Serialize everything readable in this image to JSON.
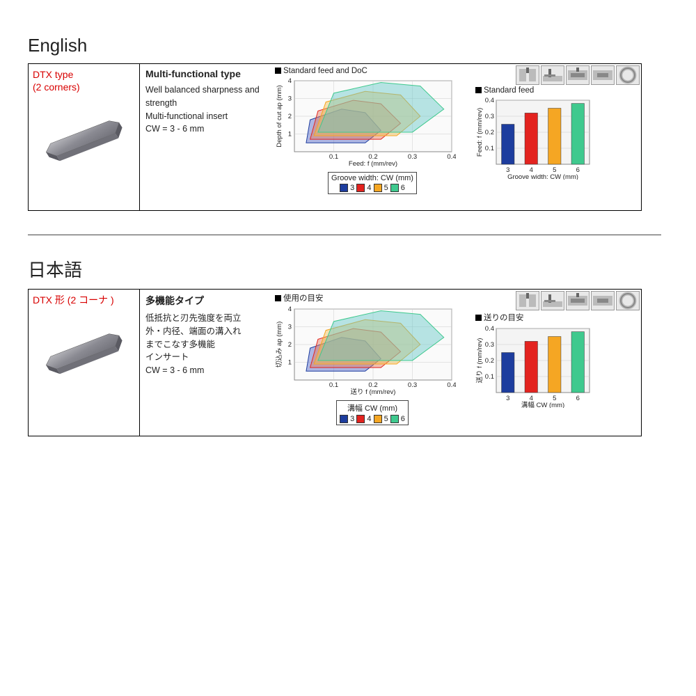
{
  "colors": {
    "cw3": "#1d3d9e",
    "cw4": "#e3231f",
    "cw5": "#f5a623",
    "cw6": "#3fc98e",
    "cw3_fill": "rgba(80,100,200,0.45)",
    "cw4_fill": "rgba(230,120,90,0.45)",
    "cw5_fill": "rgba(245,190,80,0.45)",
    "cw6_fill": "rgba(100,200,200,0.45)"
  },
  "region_chart": {
    "xlim": [
      0,
      0.4
    ],
    "ylim": [
      0,
      4
    ],
    "xticks": [
      0.1,
      0.2,
      0.3,
      0.4
    ],
    "yticks": [
      1,
      2,
      3,
      4
    ],
    "regions": {
      "cw3": [
        [
          0.03,
          0.5
        ],
        [
          0.04,
          1.8
        ],
        [
          0.12,
          2.4
        ],
        [
          0.18,
          2.2
        ],
        [
          0.22,
          1.2
        ],
        [
          0.18,
          0.5
        ]
      ],
      "cw4": [
        [
          0.04,
          0.7
        ],
        [
          0.06,
          2.3
        ],
        [
          0.15,
          2.9
        ],
        [
          0.22,
          2.7
        ],
        [
          0.27,
          1.6
        ],
        [
          0.22,
          0.7
        ]
      ],
      "cw5": [
        [
          0.05,
          0.9
        ],
        [
          0.08,
          2.8
        ],
        [
          0.18,
          3.4
        ],
        [
          0.27,
          3.2
        ],
        [
          0.32,
          2.0
        ],
        [
          0.26,
          0.9
        ]
      ],
      "cw6": [
        [
          0.06,
          1.1
        ],
        [
          0.1,
          3.3
        ],
        [
          0.22,
          3.9
        ],
        [
          0.32,
          3.7
        ],
        [
          0.38,
          2.4
        ],
        [
          0.3,
          1.1
        ]
      ]
    }
  },
  "bar_chart": {
    "categories": [
      "3",
      "4",
      "5",
      "6"
    ],
    "values": [
      0.25,
      0.32,
      0.35,
      0.38
    ],
    "ylim": [
      0,
      0.4
    ],
    "yticks": [
      0.1,
      0.2,
      0.3,
      0.4
    ]
  },
  "sections": [
    {
      "lang_title": "English",
      "type_label_1": "DTX type",
      "type_label_2": "(2 corners)",
      "desc_title": "Multi-functional type",
      "desc_body": "Well balanced sharpness and strength<br>Multi-functional insert<br>CW = 3 - 6 mm",
      "region_title": "Standard feed and DoC",
      "region_xlabel": "Feed: f (mm/rev)",
      "region_ylabel": "Depth of cut ap (mm)",
      "legend_title": "Groove width: CW (mm)",
      "bar_title": "Standard feed",
      "bar_xlabel": "Groove width: CW (mm)",
      "bar_ylabel": "Feed: f (mm/rev)"
    },
    {
      "lang_title": "日本語",
      "type_label_1": "DTX 形 (2 コーナ )",
      "type_label_2": "",
      "desc_title": "多機能タイプ",
      "desc_body": "低抵抗と刃先強度を両立<br>外・内径、端面の溝入れ<br>までこなす多機能<br>インサート<br>CW = 3 - 6 mm",
      "region_title": "使用の目安",
      "region_xlabel": "送り f (mm/rev)",
      "region_ylabel": "切込み ap (mm)",
      "legend_title": "溝幅 CW (mm)",
      "bar_title": "送りの目安",
      "bar_xlabel": "溝幅 CW (mm)",
      "bar_ylabel": "送り f (mm/rev)"
    }
  ]
}
